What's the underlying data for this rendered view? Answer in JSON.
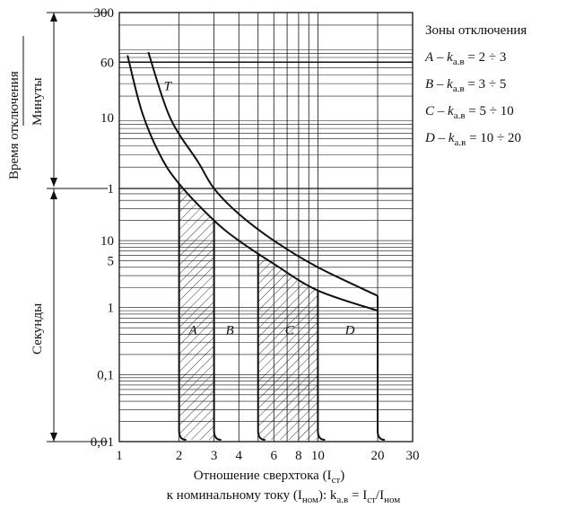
{
  "chart_data": {
    "type": "line",
    "x_scale": "log",
    "xlim": [
      1,
      30
    ],
    "x_ticks": [
      "1",
      "2",
      "3",
      "4",
      "6",
      "8",
      "10",
      "20",
      "30"
    ],
    "y_bands": {
      "minutes": {
        "ticks": [
          "300",
          "60",
          "10"
        ],
        "range_min": [
          1,
          300
        ]
      },
      "seconds": {
        "ticks": [
          "1",
          "10",
          "5",
          "1",
          "0,1",
          "0,01"
        ]
      }
    },
    "y_label_outer": "Время отключения",
    "y_label_minutes": "Минуты",
    "y_label_seconds": "Секунды",
    "x_label_line1": "Отношение сверхтока (I",
    "x_label_line1_sub": "ст",
    "x_label_line1_end": ")",
    "x_label_line2_a": "к номинальному току (I",
    "x_label_line2_sub1": "ном",
    "x_label_line2_b": "): k",
    "x_label_line2_sub2": "а.в",
    "x_label_line2_c": " = I",
    "x_label_line2_sub3": "ст",
    "x_label_line2_d": "/I",
    "x_label_line2_sub4": "ном",
    "curve_label": "T",
    "series": [
      {
        "name": "T",
        "points": [
          [
            1.1,
            4500
          ],
          [
            1.3,
            720
          ],
          [
            1.6,
            180
          ],
          [
            2,
            70
          ],
          [
            3,
            20
          ],
          [
            4,
            10
          ],
          [
            6,
            4.5
          ],
          [
            10,
            1.8
          ],
          [
            20,
            0.9
          ]
        ]
      },
      {
        "name": "T",
        "points": [
          [
            1.4,
            5000
          ],
          [
            1.8,
            600
          ],
          [
            2.5,
            140
          ],
          [
            3,
            60
          ],
          [
            4,
            25
          ],
          [
            6,
            10
          ],
          [
            10,
            4
          ],
          [
            20,
            1.5
          ]
        ]
      }
    ],
    "zones": [
      {
        "label": "A",
        "x_from": 2,
        "x_to": 3,
        "hatched": true
      },
      {
        "label": "B",
        "x_from": 3,
        "x_to": 5,
        "hatched": false
      },
      {
        "label": "C",
        "x_from": 5,
        "x_to": 10,
        "hatched": true
      },
      {
        "label": "D",
        "x_from": 10,
        "x_to": 20,
        "hatched": false
      }
    ],
    "legend": {
      "title": "Зоны отключения",
      "items": [
        {
          "zone": "A",
          "k": "2 ÷ 3"
        },
        {
          "zone": "B",
          "k": "3 ÷ 5"
        },
        {
          "zone": "C",
          "k": "5 ÷ 10"
        },
        {
          "zone": "D",
          "k": "10 ÷ 20"
        }
      ],
      "k_symbol": "k",
      "k_sub": "а.в"
    }
  }
}
